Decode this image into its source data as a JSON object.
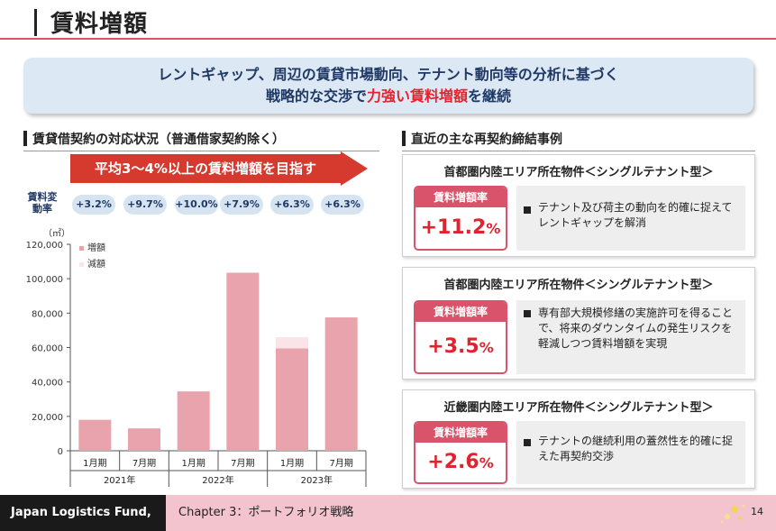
{
  "page": {
    "title": "賃料増額",
    "page_number": "14"
  },
  "banner": {
    "line1": "レントギャップ、周辺の賃貸市場動向、テナント動向等の分析に基づく",
    "line2_pre": "戦略的な交渉で",
    "line2_highlight": "力強い賃料増額",
    "line2_post": "を継続"
  },
  "left": {
    "heading": "賃貸借契約の対応状況（普通借家契約除く）",
    "arrow_label": "平均3～4%以上の賃料増額を目指す",
    "rate_label": "賃料変動率",
    "rates": [
      "+3.2%",
      "+9.7%",
      "+10.0%",
      "+7.9%",
      "+6.3%",
      "+6.3%"
    ],
    "unit": "（㎡）"
  },
  "chart_data": {
    "type": "bar",
    "categories": [
      "1月期",
      "7月期",
      "1月期",
      "7月期",
      "1月期",
      "7月期"
    ],
    "groups": [
      "2021年",
      "2022年",
      "2023年"
    ],
    "series": [
      {
        "name": "増額",
        "color": "#e9a3ad",
        "values": [
          18000,
          13000,
          34500,
          103500,
          59500,
          77500
        ]
      },
      {
        "name": "減額",
        "color": "#fbe4e7",
        "values": [
          0,
          0,
          0,
          0,
          6500,
          0
        ]
      }
    ],
    "ylim": [
      0,
      120000
    ],
    "yticks": [
      "0",
      "20,000",
      "40,000",
      "60,000",
      "80,000",
      "100,000",
      "120,000"
    ],
    "stacked": true,
    "legend": "top-left"
  },
  "right": {
    "heading": "直近の主な再契約締結事例",
    "cases": [
      {
        "title": "首都圏内陸エリア所在物件＜シングルテナント型＞",
        "rate_label": "賃料増額率",
        "rate_value": "+11.2",
        "rate_unit": "%",
        "note": "テナント及び荷主の動向を的確に捉えてレントギャップを解消"
      },
      {
        "title": "首都圏内陸エリア所在物件＜シングルテナント型＞",
        "rate_label": "賃料増額率",
        "rate_value": "+3.5",
        "rate_unit": "%",
        "note": "専有部大規模修繕の実施許可を得ることで、将来のダウンタイムの発生リスクを軽減しつつ賃料増額を実現"
      },
      {
        "title": "近畿圏内陸エリア所在物件＜シングルテナント型＞",
        "rate_label": "賃料増額率",
        "rate_value": "+2.6",
        "rate_unit": "%",
        "note": "テナントの継続利用の蓋然性を的確に捉えた再契約交渉"
      }
    ]
  },
  "footer": {
    "brand": "Japan Logistics Fund, Inc.",
    "chapter": "Chapter 3：ポートフォリオ戦略"
  }
}
